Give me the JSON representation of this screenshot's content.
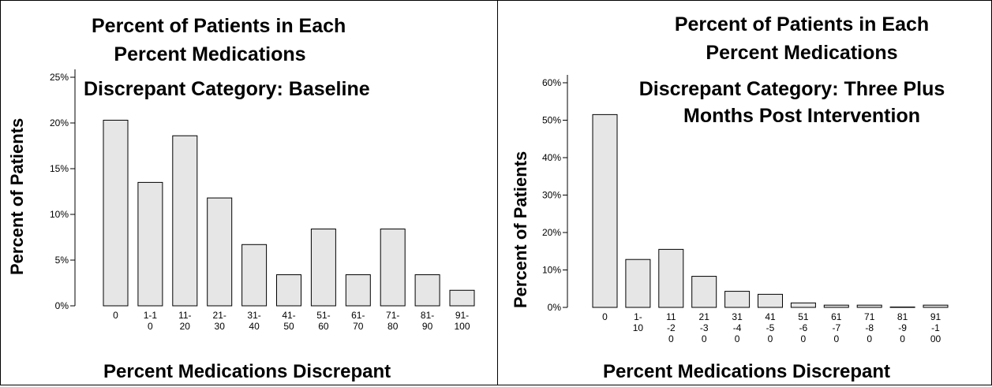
{
  "chart_data": [
    {
      "type": "bar",
      "title_lines": [
        "Percent of Patients in Each",
        "Percent Medications",
        "Discrepant Category: Baseline"
      ],
      "xlabel": "Percent Medications Discrepant",
      "ylabel": "Percent of Patients",
      "categories": [
        "0",
        "1-10",
        "11-20",
        "21-30",
        "31-40",
        "41-50",
        "51-60",
        "61-70",
        "71-80",
        "81-90",
        "91-100"
      ],
      "values": [
        20.3,
        13.5,
        18.6,
        11.8,
        6.7,
        3.4,
        8.4,
        3.4,
        8.4,
        3.4,
        1.7
      ],
      "ylim": [
        0,
        25
      ],
      "yticks": [
        "0%",
        "5%",
        "10%",
        "15%",
        "20%",
        "25%"
      ],
      "grid": false,
      "colors": {
        "bar_fill": "#e6e6e6",
        "bar_stroke": "#000000"
      }
    },
    {
      "type": "bar",
      "title_lines": [
        "Percent of Patients in Each",
        "Percent Medications",
        "Discrepant Category: Three Plus",
        "Months Post Intervention"
      ],
      "xlabel": "Percent Medications Discrepant",
      "ylabel": "Percent of Patients",
      "categories": [
        "0",
        "1-10",
        "11-20",
        "21-30",
        "31-40",
        "41-50",
        "51-60",
        "61-70",
        "71-80",
        "81-90",
        "91-100"
      ],
      "values": [
        51.5,
        12.8,
        15.5,
        8.3,
        4.3,
        3.5,
        1.2,
        0.6,
        0.6,
        0,
        0.6
      ],
      "ylim": [
        0,
        60
      ],
      "yticks": [
        "0%",
        "10%",
        "20%",
        "30%",
        "40%",
        "50%",
        "60%"
      ],
      "grid": false,
      "colors": {
        "bar_fill": "#e6e6e6",
        "bar_stroke": "#000000"
      }
    }
  ]
}
